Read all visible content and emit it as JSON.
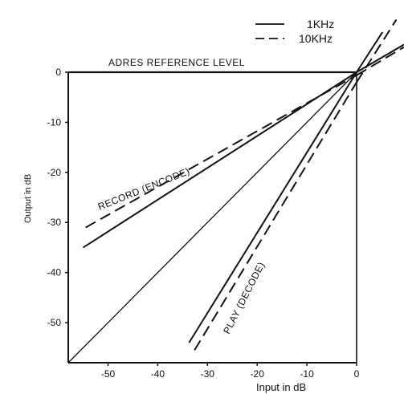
{
  "chart_data": {
    "type": "line",
    "title": "",
    "xlabel": "Input in dB",
    "ylabel": "Output in dB",
    "xlim": [
      -58,
      0
    ],
    "ylim": [
      -58,
      0
    ],
    "x_ticks": [
      -50,
      -40,
      -30,
      -20,
      -10,
      0
    ],
    "y_ticks": [
      0,
      -10,
      -20,
      -30,
      -40,
      -50
    ],
    "grid": false,
    "legend": {
      "placement": "top-right",
      "entries": [
        {
          "label": "1KHz",
          "style": "solid"
        },
        {
          "label": "10KHz",
          "style": "dashed"
        }
      ]
    },
    "annotations": {
      "reference_level": "ADRES REFERENCE LEVEL",
      "record": "RECORD (ENCODE)",
      "play": "PLAY (DECODE)"
    },
    "series": [
      {
        "curve": "reference",
        "style": "solid",
        "x": [
          -58,
          0
        ],
        "y": [
          -58,
          0
        ]
      },
      {
        "curve": "record",
        "style": "solid",
        "legend_ref": "1KHz",
        "x": [
          -55,
          0
        ],
        "y": [
          -35,
          0
        ]
      },
      {
        "curve": "record",
        "style": "dashed",
        "legend_ref": "10KHz",
        "x": [
          -54.5,
          0
        ],
        "y": [
          -31,
          -0.6
        ]
      },
      {
        "curve": "play",
        "style": "solid",
        "legend_ref": "1KHz",
        "x": [
          -33.7,
          0
        ],
        "y": [
          -54,
          0
        ]
      },
      {
        "curve": "play",
        "style": "dashed",
        "legend_ref": "10KHz",
        "x": [
          -32.6,
          0
        ],
        "y": [
          -55.5,
          -2
        ]
      }
    ],
    "extensions": [
      {
        "curve": "record",
        "style": "solid",
        "x": [
          0,
          9.5
        ],
        "y": [
          0,
          5.5
        ]
      },
      {
        "curve": "record",
        "style": "dashed",
        "x": [
          0,
          9.5
        ],
        "y": [
          -0.6,
          5
        ]
      },
      {
        "curve": "play",
        "style": "solid",
        "x": [
          0,
          5.2
        ],
        "y": [
          0,
          8
        ]
      },
      {
        "curve": "play",
        "style": "dashed",
        "x": [
          0,
          8
        ],
        "y": [
          -2,
          10.5
        ]
      }
    ]
  }
}
